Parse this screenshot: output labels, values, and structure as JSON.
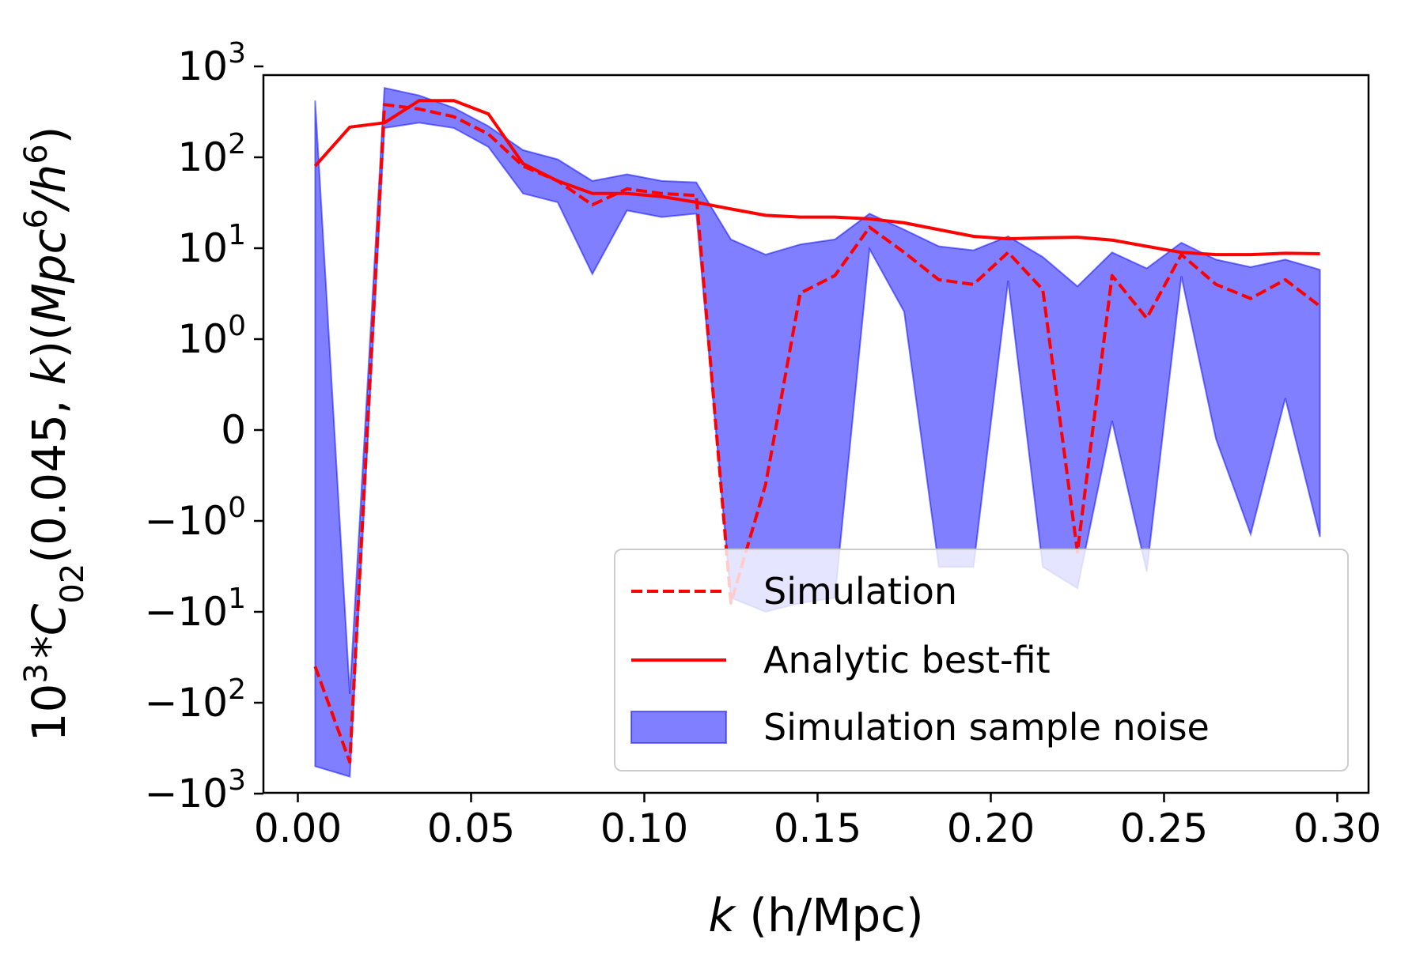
{
  "chart_data": {
    "type": "line",
    "xlabel": {
      "var": "k",
      "unit": " (h/Mpc)"
    },
    "ylabel": {
      "prefix": "10",
      "prefix_sup": "3",
      "star": "*",
      "func": "C",
      "func_sub": "02",
      "args": "(0.045, ",
      "var": "k",
      "close": ")(",
      "mpc": "Mpc",
      "mpc_sup": "6",
      "slash": "/",
      "h": "h",
      "h_sup": "6",
      "end": ")"
    },
    "xlim": [
      -0.01,
      0.31
    ],
    "xticks": [
      0.0,
      0.05,
      0.1,
      0.15,
      0.2,
      0.25,
      0.3
    ],
    "xtick_labels": [
      "0.00",
      "0.05",
      "0.10",
      "0.15",
      "0.20",
      "0.25",
      "0.30"
    ],
    "yscale": "symlog",
    "yticks": [
      {
        "value": 1000,
        "label": "10",
        "sup": "3"
      },
      {
        "value": 100,
        "label": "10",
        "sup": "2"
      },
      {
        "value": 10,
        "label": "10",
        "sup": "1"
      },
      {
        "value": 1,
        "label": "10",
        "sup": "0"
      },
      {
        "value": 0,
        "label": "0",
        "sup": ""
      },
      {
        "value": -1,
        "label": "−10",
        "sup": "0"
      },
      {
        "value": -10,
        "label": "−10",
        "sup": "1"
      },
      {
        "value": -100,
        "label": "−10",
        "sup": "2"
      },
      {
        "value": -1000,
        "label": "−10",
        "sup": "3"
      }
    ],
    "x": [
      0.005,
      0.015,
      0.025,
      0.035,
      0.045,
      0.055,
      0.065,
      0.075,
      0.085,
      0.095,
      0.105,
      0.115,
      0.125,
      0.135,
      0.145,
      0.155,
      0.165,
      0.175,
      0.185,
      0.195,
      0.205,
      0.215,
      0.225,
      0.235,
      0.245,
      0.255,
      0.265,
      0.275,
      0.285,
      0.295
    ],
    "series": [
      {
        "name": "Simulation",
        "style": "dashed",
        "color": "#ff0000",
        "values": [
          -40,
          -450,
          380,
          340,
          280,
          180,
          80,
          55,
          30,
          45,
          40,
          38,
          -8,
          -0.6,
          3.2,
          5,
          17,
          9,
          4.5,
          4,
          9,
          3.5,
          -2.2,
          5,
          1.7,
          8.5,
          4,
          2.8,
          4.5,
          2.3
        ]
      },
      {
        "name": "Analytic best-fit",
        "style": "solid",
        "color": "#ff0000",
        "values": [
          80,
          215,
          240,
          420,
          420,
          300,
          85,
          55,
          40,
          40,
          37,
          32,
          27,
          23,
          22,
          22,
          21,
          19,
          16,
          13.5,
          12.7,
          13,
          13.2,
          12.3,
          10.5,
          9,
          8.5,
          8.5,
          8.8,
          8.7
        ]
      },
      {
        "name": "Simulation sample noise",
        "type": "band",
        "color": "#0000ff",
        "upper": [
          420,
          -80,
          580,
          480,
          350,
          220,
          120,
          95,
          55,
          65,
          55,
          53,
          12.5,
          8.5,
          11,
          12.5,
          24,
          16,
          10.5,
          9.5,
          13.5,
          8,
          3.8,
          9,
          6,
          11.5,
          7.5,
          6.2,
          7.5,
          5.8
        ],
        "lower": [
          -500,
          -650,
          210,
          240,
          210,
          130,
          40,
          32,
          5.2,
          26,
          22,
          24,
          -7,
          -10,
          -8,
          -7,
          9.8,
          2,
          -3.2,
          -3.2,
          4.4,
          -3.2,
          -5.5,
          0.1,
          -3.6,
          4.9,
          -0.1,
          -1.4,
          0.35,
          -1.5
        ]
      }
    ],
    "legend": {
      "position": "lower right",
      "entries": [
        "Simulation",
        "Analytic best-fit",
        "Simulation sample noise"
      ]
    }
  }
}
